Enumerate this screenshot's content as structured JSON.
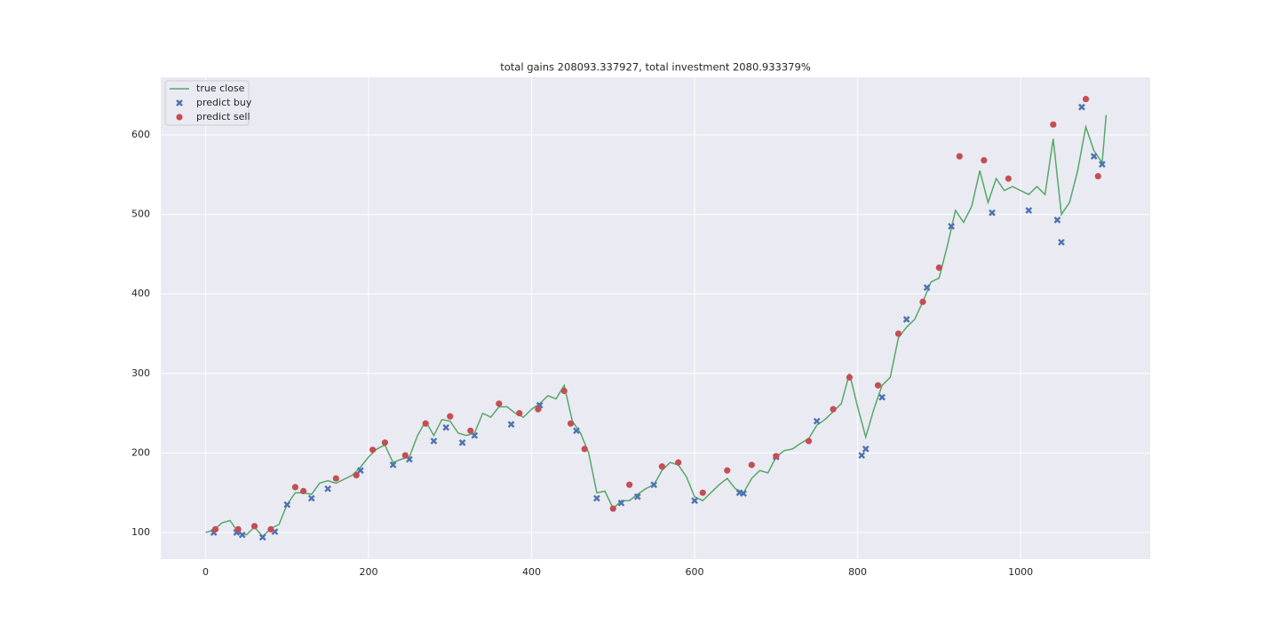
{
  "chart_data": {
    "type": "line",
    "title": "total gains 208093.337927, total investment 2080.933379%",
    "xlim": [
      -55,
      1159
    ],
    "ylim": [
      66.5,
      672.5
    ],
    "xticks": [
      0,
      200,
      400,
      600,
      800,
      1000
    ],
    "yticks": [
      100,
      200,
      300,
      400,
      500,
      600
    ],
    "grid": true,
    "legend": "upper left",
    "series": [
      {
        "name": "true close",
        "marker": "line",
        "color": "#55a868",
        "x": [
          0,
          10,
          20,
          30,
          40,
          50,
          60,
          70,
          80,
          90,
          100,
          110,
          120,
          130,
          140,
          150,
          160,
          170,
          180,
          190,
          200,
          210,
          220,
          230,
          240,
          250,
          260,
          270,
          280,
          290,
          300,
          310,
          320,
          330,
          340,
          350,
          360,
          370,
          380,
          390,
          400,
          410,
          420,
          430,
          440,
          450,
          460,
          470,
          480,
          490,
          500,
          510,
          520,
          530,
          540,
          550,
          560,
          570,
          580,
          590,
          600,
          610,
          620,
          630,
          640,
          650,
          660,
          670,
          680,
          690,
          700,
          710,
          720,
          730,
          740,
          750,
          760,
          770,
          780,
          790,
          800,
          810,
          820,
          830,
          840,
          850,
          860,
          870,
          880,
          890,
          900,
          910,
          920,
          930,
          940,
          950,
          960,
          970,
          980,
          990,
          1000,
          1010,
          1020,
          1030,
          1040,
          1050,
          1060,
          1070,
          1080,
          1090,
          1100,
          1105
        ],
        "values": [
          100,
          103,
          112,
          115,
          100,
          97,
          107,
          95,
          105,
          110,
          135,
          150,
          150,
          148,
          162,
          165,
          162,
          167,
          172,
          182,
          195,
          205,
          210,
          188,
          192,
          195,
          222,
          240,
          222,
          242,
          240,
          225,
          222,
          225,
          250,
          245,
          258,
          258,
          250,
          245,
          255,
          262,
          272,
          268,
          285,
          240,
          225,
          200,
          150,
          152,
          130,
          140,
          140,
          148,
          155,
          160,
          178,
          188,
          185,
          170,
          145,
          140,
          150,
          160,
          168,
          155,
          150,
          168,
          178,
          175,
          195,
          203,
          205,
          212,
          218,
          235,
          242,
          252,
          262,
          300,
          258,
          220,
          255,
          285,
          295,
          345,
          358,
          368,
          390,
          415,
          420,
          460,
          505,
          490,
          510,
          555,
          515,
          545,
          530,
          535,
          530,
          525,
          535,
          525,
          595,
          500,
          515,
          555,
          610,
          580,
          565,
          625
        ]
      },
      {
        "name": "predict buy",
        "marker": "x",
        "color": "#4c72b0",
        "x": [
          10,
          38,
          45,
          70,
          85,
          100,
          130,
          150,
          190,
          230,
          250,
          280,
          295,
          315,
          330,
          375,
          410,
          455,
          480,
          510,
          530,
          550,
          600,
          655,
          660,
          700,
          750,
          805,
          810,
          830,
          860,
          885,
          915,
          965,
          1010,
          1045,
          1050,
          1075,
          1090,
          1100
        ],
        "values": [
          100,
          100,
          97,
          94,
          101,
          135,
          143,
          155,
          178,
          185,
          192,
          215,
          232,
          213,
          222,
          236,
          260,
          228,
          143,
          137,
          145,
          160,
          140,
          150,
          149,
          195,
          240,
          197,
          205,
          270,
          368,
          408,
          485,
          502,
          505,
          493,
          465,
          635,
          573,
          563
        ]
      },
      {
        "name": "predict sell",
        "marker": "o",
        "color": "#c44e52",
        "x": [
          12,
          40,
          60,
          80,
          110,
          120,
          160,
          185,
          205,
          220,
          245,
          270,
          300,
          325,
          360,
          385,
          408,
          440,
          448,
          465,
          500,
          520,
          560,
          580,
          610,
          640,
          670,
          700,
          740,
          770,
          790,
          825,
          850,
          880,
          900,
          925,
          955,
          985,
          1040,
          1080,
          1095
        ],
        "values": [
          104,
          104,
          108,
          104,
          157,
          152,
          168,
          172,
          204,
          213,
          197,
          237,
          246,
          228,
          262,
          250,
          255,
          278,
          237,
          205,
          130,
          160,
          183,
          188,
          150,
          178,
          185,
          196,
          215,
          255,
          295,
          285,
          350,
          390,
          433,
          573,
          568,
          545,
          613,
          645,
          548
        ]
      }
    ]
  }
}
